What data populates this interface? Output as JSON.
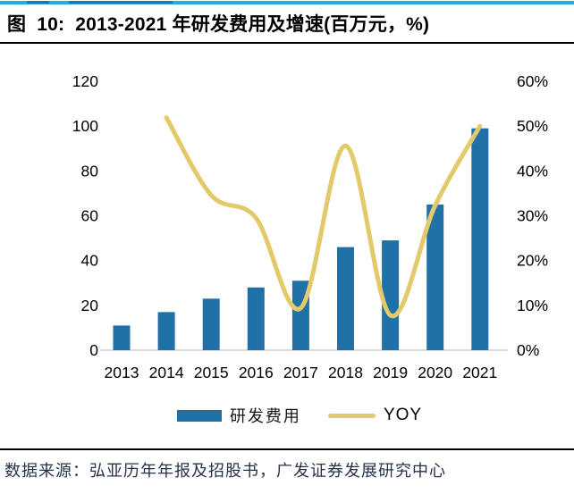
{
  "page": {
    "title": "图  10:  2013-2021 年研发费用及增速(百万元，%)",
    "source_note": "数据来源：弘亚历年年报及招股书，广发证券发展研究中心"
  },
  "legend": {
    "bar_label": "研发费用",
    "line_label": "YOY"
  },
  "colors": {
    "bar": "#2171A9",
    "line": "#E3C969",
    "top_strip": "#29ABE2",
    "top_strip_dark": "#1C75BC",
    "axis_line": "#D9D9D9",
    "source_text": "#26324B"
  },
  "chart_data": {
    "type": "bar",
    "title": "2013-2021 年研发费用及增速(百万元，%)",
    "categories": [
      "2013",
      "2014",
      "2015",
      "2016",
      "2017",
      "2018",
      "2019",
      "2020",
      "2021"
    ],
    "series": [
      {
        "name": "研发费用",
        "type": "bar",
        "axis": "left",
        "values": [
          11,
          17,
          23,
          28,
          31,
          46,
          49,
          65,
          99
        ]
      },
      {
        "name": "YOY",
        "type": "line",
        "axis": "right",
        "values": [
          null,
          51.9,
          34.6,
          29.5,
          9.4,
          45.6,
          7.8,
          32.3,
          50.0
        ]
      }
    ],
    "left_axis": {
      "label": "",
      "range": [
        0,
        120
      ],
      "ticks": [
        0,
        20,
        40,
        60,
        80,
        100,
        120
      ]
    },
    "right_axis": {
      "label": "",
      "range": [
        0,
        60
      ],
      "ticks": [
        "0%",
        "10%",
        "20%",
        "30%",
        "40%",
        "50%",
        "60%"
      ]
    },
    "grid": false,
    "legend_position": "bottom"
  }
}
